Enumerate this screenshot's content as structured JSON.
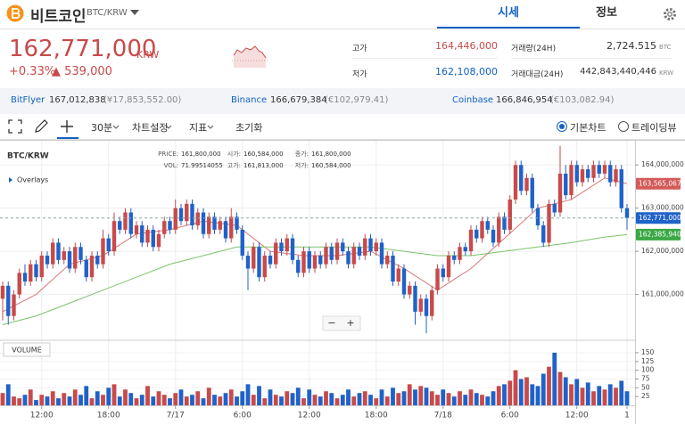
{
  "header": {
    "coin_name": "비트코인",
    "pair": "BTC/KRW",
    "tabs": [
      "시세",
      "정보"
    ]
  },
  "ticker": {
    "price": "162,771,000",
    "currency": "KRW",
    "change_rate": "+0.33%",
    "change": "▲ 539,000",
    "high_label": "고가",
    "high": "164,446,000",
    "low_label": "저가",
    "low": "162,108,000",
    "volume_label": "거래량(24H)",
    "volume": "2,724.515",
    "volume_unit": "BTC",
    "value_label": "거래대금(24H)",
    "value": "442,843,440,446",
    "value_unit": "KRW"
  },
  "exchanges": [
    {
      "name": "BitFlyer",
      "price": "167,012,838",
      "local": "(¥17,853,552.00)"
    },
    {
      "name": "Binance",
      "price": "166,679,384",
      "local": "(€102,979.41)"
    },
    {
      "name": "Coinbase",
      "price": "166,846,954",
      "local": "(€103,082.94)"
    }
  ],
  "toolbar": {
    "interval": "30분",
    "settings": "차트설정",
    "indicators": "지표",
    "reset": "초기화",
    "views": [
      "기본차트",
      "트레이딩뷰"
    ]
  },
  "chart_data": {
    "type": "candlestick",
    "title": "BTC/KRW",
    "overlays": "Overlays",
    "volume_title": "VOLUME",
    "zoom": [
      "−",
      "+"
    ],
    "info": [
      {
        "label": "PRICE:",
        "value": "161,800,000"
      },
      {
        "label": "시가:",
        "value": "160,584,000"
      },
      {
        "label": "종가:",
        "value": "161,800,000"
      },
      {
        "label": "VOL:",
        "value": "71.99514055"
      },
      {
        "label": "고가:",
        "value": "161,813,000"
      },
      {
        "label": "저가:",
        "value": "160,584,000"
      }
    ],
    "up_color": "#c84a4a",
    "down_color": "#1f62c9",
    "grid": true,
    "ylim": [
      160000000,
      164500000
    ],
    "yticks": [
      {
        "value": 161000000,
        "label": "161,000,000"
      },
      {
        "value": 162000000,
        "label": "162,000,000"
      },
      {
        "value": 163000000,
        "label": "163,000,000"
      },
      {
        "value": 164000000,
        "label": "164,000,000"
      }
    ],
    "volume_ylim": [
      0,
      160
    ],
    "volume_ticks": [
      25,
      50,
      75,
      100,
      125,
      150
    ],
    "categories": [
      null,
      null,
      null,
      null,
      null,
      null,
      null,
      "12:00",
      null,
      null,
      null,
      null,
      null,
      null,
      null,
      null,
      null,
      null,
      null,
      "18:00",
      null,
      null,
      null,
      null,
      null,
      null,
      null,
      null,
      null,
      null,
      null,
      "7/17",
      null,
      null,
      null,
      null,
      null,
      null,
      null,
      null,
      null,
      null,
      null,
      "6:00",
      null,
      null,
      null,
      null,
      null,
      null,
      null,
      null,
      null,
      null,
      null,
      "12:00",
      null,
      null,
      null,
      null,
      null,
      null,
      null,
      null,
      null,
      null,
      null,
      "18:00",
      null,
      null,
      null,
      null,
      null,
      null,
      null,
      null,
      null,
      null,
      null,
      "7/18",
      null,
      null,
      null,
      null,
      null,
      null,
      null,
      null,
      null,
      null,
      null,
      "6:00",
      null,
      null,
      null,
      null,
      null,
      null,
      null,
      null,
      null,
      null,
      null,
      "12:00",
      null,
      null,
      null,
      null,
      null,
      null,
      null,
      null,
      "1"
    ],
    "candles": [
      [
        160900000,
        161300000,
        160400000,
        161200000
      ],
      [
        161200000,
        161300000,
        160300000,
        160500000
      ],
      [
        160500000,
        161100000,
        160400000,
        161000000
      ],
      [
        161000000,
        161600000,
        160900000,
        161500000
      ],
      [
        161500000,
        161700000,
        161200000,
        161300000
      ],
      [
        161300000,
        161800000,
        161200000,
        161700000
      ],
      [
        161700000,
        161800000,
        161300000,
        161400000
      ],
      [
        161400000,
        162000000,
        161300000,
        161900000
      ],
      [
        161900000,
        162000000,
        161600000,
        161700000
      ],
      [
        161700000,
        162300000,
        161600000,
        162200000
      ],
      [
        162200000,
        162300000,
        161700000,
        161800000
      ],
      [
        161800000,
        162100000,
        161700000,
        162000000
      ],
      [
        162000000,
        162100000,
        161500000,
        161600000
      ],
      [
        161600000,
        162200000,
        161500000,
        162100000
      ],
      [
        162100000,
        162200000,
        161700000,
        161800000
      ],
      [
        161800000,
        161900000,
        161300000,
        161400000
      ],
      [
        161400000,
        162000000,
        161300000,
        161900000
      ],
      [
        161900000,
        162000000,
        161600000,
        161700000
      ],
      [
        161700000,
        162500000,
        161600000,
        162300000
      ],
      [
        162300000,
        162400000,
        161900000,
        162000000
      ],
      [
        162000000,
        162900000,
        161900000,
        162700000
      ],
      [
        162700000,
        162800000,
        162400000,
        162500000
      ],
      [
        162500000,
        163000000,
        162400000,
        162900000
      ],
      [
        162900000,
        163000000,
        162300000,
        162400000
      ],
      [
        162400000,
        162700000,
        162300000,
        162600000
      ],
      [
        162600000,
        162700000,
        162100000,
        162200000
      ],
      [
        162200000,
        162600000,
        162100000,
        162500000
      ],
      [
        162500000,
        162600000,
        162000000,
        162100000
      ],
      [
        162100000,
        162500000,
        162000000,
        162400000
      ],
      [
        162400000,
        162800000,
        162300000,
        162700000
      ],
      [
        162700000,
        162800000,
        162400000,
        162500000
      ],
      [
        162500000,
        163200000,
        162400000,
        163000000
      ],
      [
        163000000,
        163100000,
        162600000,
        162700000
      ],
      [
        162700000,
        163200000,
        162600000,
        163100000
      ],
      [
        163100000,
        163200000,
        162500000,
        162600000
      ],
      [
        162600000,
        163000000,
        162500000,
        162900000
      ],
      [
        162900000,
        163000000,
        162300000,
        162400000
      ],
      [
        162400000,
        162900000,
        162300000,
        162800000
      ],
      [
        162800000,
        162900000,
        162400000,
        162500000
      ],
      [
        162500000,
        162800000,
        162400000,
        162700000
      ],
      [
        162700000,
        162800000,
        162200000,
        162300000
      ],
      [
        162300000,
        163000000,
        162200000,
        162800000
      ],
      [
        162800000,
        162900000,
        162400000,
        162500000
      ],
      [
        162500000,
        162600000,
        161800000,
        161900000
      ],
      [
        161900000,
        162000000,
        161100000,
        161600000
      ],
      [
        161600000,
        162200000,
        161500000,
        162100000
      ],
      [
        162100000,
        162200000,
        161300000,
        161400000
      ],
      [
        161400000,
        162000000,
        161300000,
        161900000
      ],
      [
        161900000,
        162000000,
        161600000,
        161700000
      ],
      [
        161700000,
        162300000,
        161600000,
        162200000
      ],
      [
        162200000,
        162300000,
        161900000,
        162000000
      ],
      [
        162000000,
        162400000,
        161900000,
        162300000
      ],
      [
        162300000,
        162400000,
        161700000,
        161800000
      ],
      [
        161800000,
        161900000,
        161400000,
        161500000
      ],
      [
        161500000,
        162100000,
        161400000,
        162000000
      ],
      [
        162000000,
        162100000,
        161500000,
        161600000
      ],
      [
        161600000,
        162000000,
        161500000,
        161900000
      ],
      [
        161900000,
        162000000,
        161600000,
        161700000
      ],
      [
        161700000,
        162200000,
        161600000,
        162100000
      ],
      [
        162100000,
        162200000,
        161700000,
        161800000
      ],
      [
        161800000,
        162300000,
        161700000,
        162200000
      ],
      [
        162200000,
        162300000,
        161900000,
        162000000
      ],
      [
        162000000,
        162100000,
        161600000,
        161700000
      ],
      [
        161700000,
        162200000,
        161600000,
        162100000
      ],
      [
        162100000,
        162200000,
        161800000,
        161900000
      ],
      [
        161900000,
        162400000,
        161800000,
        162300000
      ],
      [
        162300000,
        162400000,
        161900000,
        162000000
      ],
      [
        162000000,
        162300000,
        161900000,
        162200000
      ],
      [
        162200000,
        162300000,
        161600000,
        161700000
      ],
      [
        161700000,
        162000000,
        161600000,
        161900000
      ],
      [
        161900000,
        162000000,
        161200000,
        161300000
      ],
      [
        161300000,
        161700000,
        161200000,
        161600000
      ],
      [
        161600000,
        161700000,
        160900000,
        161000000
      ],
      [
        161000000,
        161300000,
        160900000,
        161200000
      ],
      [
        161200000,
        161300000,
        160300000,
        160600000
      ],
      [
        160600000,
        161000000,
        160500000,
        160900000
      ],
      [
        160900000,
        161000000,
        160100000,
        160500000
      ],
      [
        160500000,
        161200000,
        160400000,
        161100000
      ],
      [
        161100000,
        161700000,
        161000000,
        161600000
      ],
      [
        161600000,
        161700000,
        161300000,
        161400000
      ],
      [
        161400000,
        162000000,
        161300000,
        161900000
      ],
      [
        161900000,
        162000000,
        161700000,
        161800000
      ],
      [
        161800000,
        162200000,
        161700000,
        162100000
      ],
      [
        162100000,
        162200000,
        161900000,
        162000000
      ],
      [
        162000000,
        162600000,
        161900000,
        162500000
      ],
      [
        162500000,
        162600000,
        162200000,
        162300000
      ],
      [
        162300000,
        162800000,
        162200000,
        162700000
      ],
      [
        162700000,
        162800000,
        162400000,
        162500000
      ],
      [
        162500000,
        162600000,
        162100000,
        162200000
      ],
      [
        162200000,
        162900000,
        162100000,
        162800000
      ],
      [
        162800000,
        162900000,
        162400000,
        162500000
      ],
      [
        162500000,
        163300000,
        162400000,
        163200000
      ],
      [
        163200000,
        164100000,
        163100000,
        164000000
      ],
      [
        164000000,
        164100000,
        163300000,
        163400000
      ],
      [
        163400000,
        163800000,
        163300000,
        163700000
      ],
      [
        163700000,
        163800000,
        162900000,
        163000000
      ],
      [
        163000000,
        163100000,
        162500000,
        162600000
      ],
      [
        162600000,
        162700000,
        162100000,
        162200000
      ],
      [
        162200000,
        163200000,
        162100000,
        163100000
      ],
      [
        163100000,
        163200000,
        162800000,
        162900000
      ],
      [
        162900000,
        164446000,
        162800000,
        163800000
      ],
      [
        163800000,
        164000000,
        163200000,
        163300000
      ],
      [
        163300000,
        164100000,
        163200000,
        164000000
      ],
      [
        164000000,
        164100000,
        163500000,
        163600000
      ],
      [
        163600000,
        164000000,
        163500000,
        163900000
      ],
      [
        163900000,
        164000000,
        163600000,
        163700000
      ],
      [
        163700000,
        164100000,
        163600000,
        164000000
      ],
      [
        164000000,
        164100000,
        163700000,
        163800000
      ],
      [
        163800000,
        164100000,
        163700000,
        164000000
      ],
      [
        164000000,
        164100000,
        163500000,
        163600000
      ],
      [
        163600000,
        164000000,
        163500000,
        163900000
      ],
      [
        163900000,
        164000000,
        162900000,
        163000000
      ],
      [
        163000000,
        163100000,
        162500000,
        162771000
      ]
    ],
    "volume": [
      35,
      60,
      25,
      20,
      30,
      45,
      15,
      30,
      25,
      40,
      20,
      35,
      25,
      45,
      30,
      55,
      20,
      40,
      30,
      50,
      60,
      25,
      45,
      35,
      20,
      30,
      55,
      25,
      40,
      30,
      20,
      35,
      45,
      25,
      30,
      40,
      20,
      50,
      30,
      25,
      35,
      45,
      25,
      40,
      60,
      30,
      55,
      20,
      45,
      30,
      25,
      40,
      35,
      50,
      20,
      45,
      30,
      25,
      40,
      35,
      20,
      30,
      45,
      25,
      35,
      40,
      30,
      20,
      45,
      25,
      50,
      35,
      40,
      60,
      45,
      55,
      50,
      40,
      30,
      45,
      35,
      25,
      40,
      30,
      45,
      35,
      30,
      25,
      40,
      55,
      60,
      70,
      100,
      75,
      80,
      60,
      55,
      90,
      110,
      150,
      95,
      80,
      60,
      75,
      50,
      65,
      40,
      55,
      45,
      60,
      50,
      70,
      40
    ],
    "current_price": {
      "value": 162771000,
      "label": "162,771,000",
      "color": "#1f62c9"
    },
    "series": [
      {
        "name": "MA short",
        "color": "#d9777a",
        "x": [
          0,
          6,
          12,
          18,
          24,
          30,
          36,
          42,
          48,
          54,
          60,
          66,
          72,
          78,
          84,
          90,
          96,
          102,
          108,
          112
        ],
        "values": [
          160600000,
          161000000,
          161700000,
          161900000,
          162400000,
          162500000,
          162700000,
          162600000,
          162000000,
          161900000,
          161900000,
          162000000,
          161600000,
          161100000,
          161600000,
          162300000,
          163000000,
          163200000,
          163700000,
          163565067
        ],
        "value_labels": [
          null,
          null,
          null,
          null,
          null,
          null,
          null,
          null,
          null,
          null,
          null,
          null,
          null,
          null,
          null,
          null,
          null,
          null,
          null,
          "163,565,067"
        ],
        "badge_color": "#d45a5a"
      },
      {
        "name": "MA long",
        "color": "#7ac36a",
        "x": [
          0,
          6,
          12,
          18,
          24,
          30,
          36,
          42,
          48,
          54,
          60,
          66,
          72,
          78,
          84,
          90,
          96,
          102,
          108,
          112
        ],
        "values": [
          160300000,
          160500000,
          160800000,
          161100000,
          161400000,
          161700000,
          161900000,
          162100000,
          162100000,
          162100000,
          162100000,
          162100000,
          162000000,
          161900000,
          161900000,
          162000000,
          162100000,
          162200000,
          162330000,
          162385940
        ],
        "value_labels": [
          null,
          null,
          null,
          null,
          null,
          null,
          null,
          null,
          null,
          null,
          null,
          null,
          null,
          null,
          null,
          null,
          null,
          null,
          null,
          "162,385,940"
        ],
        "badge_color": "#3aa845"
      }
    ]
  }
}
